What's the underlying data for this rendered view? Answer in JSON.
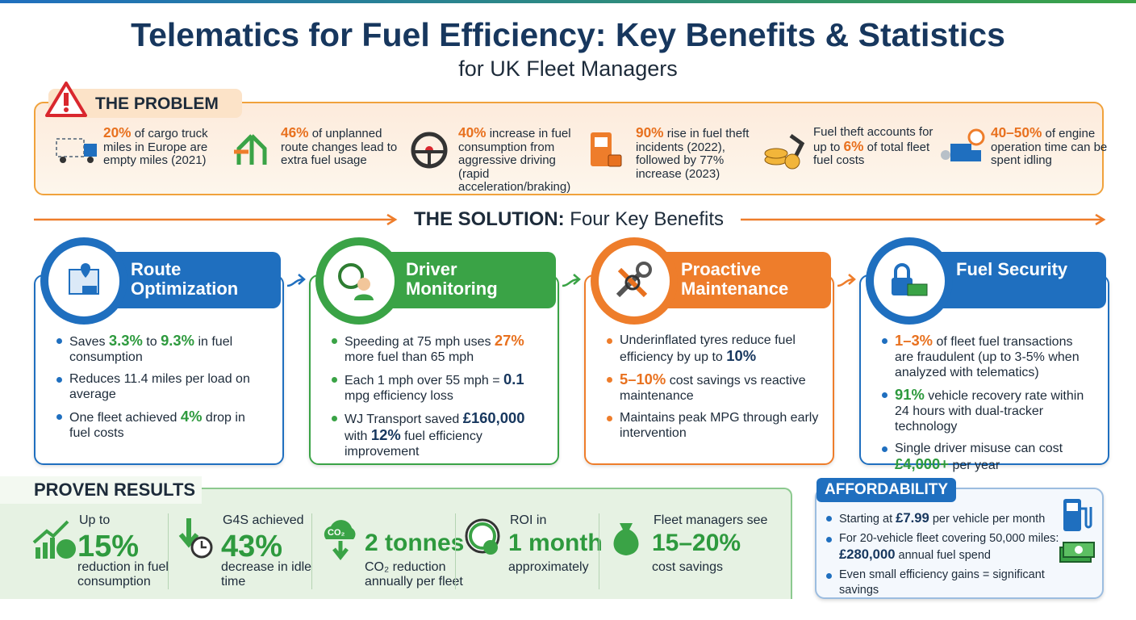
{
  "header": {
    "title": "Telematics for Fuel Efficiency: Key Benefits & Statistics",
    "subtitle": "for UK Fleet Managers"
  },
  "problem": {
    "title": "THE PROBLEM",
    "items": [
      [
        {
          "text": "20%",
          "color": "#e8711f"
        },
        {
          "text": " of cargo truck miles in Europe are empty miles (2021)"
        }
      ],
      [
        {
          "text": "46%",
          "color": "#e8711f"
        },
        {
          "text": " of unplanned route changes lead to extra fuel usage"
        }
      ],
      [
        {
          "text": "40%",
          "color": "#e8711f"
        },
        {
          "text": " increase in fuel consumption from aggressive driving (rapid acceleration/braking)"
        }
      ],
      [
        {
          "text": "90%",
          "color": "#e8711f"
        },
        {
          "text": " rise in fuel theft incidents (2022), followed by 77% increase (2023)"
        }
      ],
      [
        {
          "text": "Fuel theft accounts for up to "
        },
        {
          "text": "6%",
          "color": "#e8711f"
        },
        {
          "text": " of total fleet fuel costs"
        }
      ],
      [
        {
          "text": "40–50%",
          "color": "#e8711f"
        },
        {
          "text": " of engine operation time can be spent idling"
        }
      ]
    ]
  },
  "solution": {
    "lead": "THE SOLUTION:",
    "rest": " Four Key Benefits"
  },
  "benefits": [
    {
      "title": "Route Optimization",
      "color": "#1f6fbf",
      "bullets": [
        [
          {
            "text": "Saves "
          },
          {
            "text": "3.3%",
            "color": "#2e9a3e"
          },
          {
            "text": " to "
          },
          {
            "text": "9.3%",
            "color": "#2e9a3e"
          },
          {
            "text": " in fuel consumption"
          }
        ],
        [
          {
            "text": "Reduces 11.4 miles per load on average"
          }
        ],
        [
          {
            "text": "One fleet achieved "
          },
          {
            "text": "4%",
            "color": "#2e9a3e"
          },
          {
            "text": " drop in fuel costs"
          }
        ]
      ]
    },
    {
      "title": "Driver Monitoring",
      "color": "#3aa346",
      "bullets": [
        [
          {
            "text": "Speeding at 75 mph uses "
          },
          {
            "text": "27%",
            "color": "#e8711f"
          },
          {
            "text": " more fuel than 65 mph"
          }
        ],
        [
          {
            "text": "Each 1 mph over 55 mph = "
          },
          {
            "text": "0.1",
            "color": "#17375e"
          },
          {
            "text": " mpg efficiency loss"
          }
        ],
        [
          {
            "text": "WJ Transport saved "
          },
          {
            "text": "£160,000",
            "color": "#17375e"
          },
          {
            "text": " with "
          },
          {
            "text": "12%",
            "color": "#17375e"
          },
          {
            "text": " fuel efficiency improvement"
          }
        ]
      ]
    },
    {
      "title": "Proactive Maintenance",
      "color": "#ee7d2b",
      "bullets": [
        [
          {
            "text": "Underinflated tyres reduce fuel efficiency by up to "
          },
          {
            "text": "10%",
            "color": "#17375e"
          }
        ],
        [
          {
            "text": "5–10%",
            "color": "#e8711f"
          },
          {
            "text": " cost savings vs reactive maintenance"
          }
        ],
        [
          {
            "text": "Maintains peak MPG through early intervention"
          }
        ]
      ]
    },
    {
      "title": "Fuel Security",
      "color": "#1f6fbf",
      "bullets": [
        [
          {
            "text": "1–3%",
            "color": "#e8711f"
          },
          {
            "text": " of fleet fuel transactions are fraudulent (up to 3-5% when analyzed with telematics)"
          }
        ],
        [
          {
            "text": "91%",
            "color": "#2e9a3e"
          },
          {
            "text": " vehicle recovery rate within 24 hours with dual-tracker technology"
          }
        ],
        [
          {
            "text": "Single driver misuse can cost "
          },
          {
            "text": "£4,000+",
            "color": "#2e9a3e"
          },
          {
            "text": " per year"
          }
        ]
      ]
    }
  ],
  "results": {
    "title": "PROVEN RESULTS",
    "items": [
      {
        "pre": "Up to",
        "big": "15%",
        "post": "reduction in fuel consumption"
      },
      {
        "pre": "G4S achieved",
        "big": "43%",
        "post": "decrease in idle time"
      },
      {
        "icon_text": "CO₂",
        "big": "2 tonnes",
        "post": "CO₂ reduction annually per fleet"
      },
      {
        "pre": "ROI in",
        "big": "1 month",
        "post": "approximately"
      },
      {
        "pre": "Fleet managers see",
        "big": "15–20%",
        "post": "cost savings"
      }
    ]
  },
  "affordability": {
    "title": "AFFORDABILITY",
    "bullets": [
      [
        {
          "text": "Starting at "
        },
        {
          "text": "£7.99",
          "color": "#17375e"
        },
        {
          "text": " per vehicle per month"
        }
      ],
      [
        {
          "text": "For 20-vehicle fleet covering 50,000 miles: "
        },
        {
          "text": "£280,000",
          "color": "#17375e"
        },
        {
          "text": " annual fuel spend"
        }
      ],
      [
        {
          "text": "Even small efficiency gains = significant savings"
        }
      ]
    ]
  }
}
